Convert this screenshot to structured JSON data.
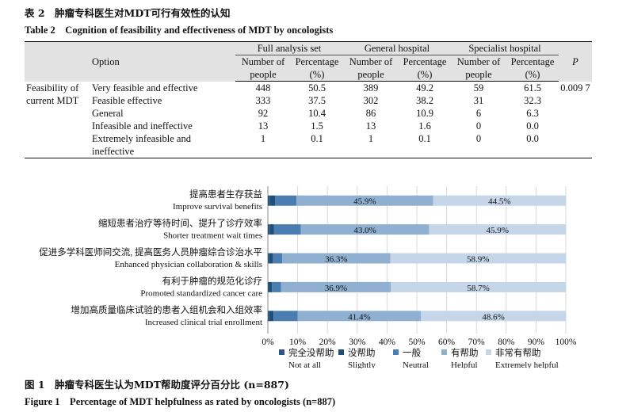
{
  "table": {
    "caption_cn": "表 2　肿瘤专科医生对MDT可行有效性的认知",
    "caption_en": "Table 2　Cognition of feasibility and effectiveness of MDT by oncologists",
    "header": {
      "option": "Option",
      "groups": [
        "Full analysis set",
        "General hospital",
        "Specialist hospital"
      ],
      "n_label": "Number of people",
      "pct_label": "Percentage (%)",
      "p_label": "P"
    },
    "row_group_label": "Feasibility of current MDT",
    "p_value": "0.009 7",
    "rows": [
      {
        "option": "Very feasible and effective",
        "fas_n": "448",
        "fas_pct": "50.5",
        "gh_n": "389",
        "gh_pct": "49.2",
        "sh_n": "59",
        "sh_pct": "61.5"
      },
      {
        "option": "Feasible effective",
        "fas_n": "333",
        "fas_pct": "37.5",
        "gh_n": "302",
        "gh_pct": "38.2",
        "sh_n": "31",
        "sh_pct": "32.3"
      },
      {
        "option": "General",
        "fas_n": "92",
        "fas_pct": "10.4",
        "gh_n": "86",
        "gh_pct": "10.9",
        "sh_n": "6",
        "sh_pct": "6.3"
      },
      {
        "option": "Infeasible and ineffective",
        "fas_n": "13",
        "fas_pct": "1.5",
        "gh_n": "13",
        "gh_pct": "1.6",
        "sh_n": "0",
        "sh_pct": "0.0"
      },
      {
        "option": "Extremely infeasible and ineffective",
        "fas_n": "1",
        "fas_pct": "0.1",
        "gh_n": "1",
        "gh_pct": "0.1",
        "sh_n": "0",
        "sh_pct": "0.0"
      }
    ]
  },
  "figure": {
    "caption_cn": "图 1　肿瘤专科医生认为MDT帮助度评分百分比 (n=887)",
    "caption_en": "Figure 1　Percentage of MDT helpfulness as rated by oncologists (n=887)"
  },
  "chart_data": {
    "type": "bar",
    "orientation": "horizontal",
    "stacked": true,
    "xlim": [
      0,
      100
    ],
    "x_ticks": [
      "0%",
      "10%",
      "20%",
      "30%",
      "40%",
      "50%",
      "60%",
      "70%",
      "80%",
      "90%",
      "100%"
    ],
    "grid": true,
    "legend_position": "bottom",
    "categories": [
      {
        "cn": "提高患者生存获益",
        "en": "Improve survival benefits"
      },
      {
        "cn": "缩短患者治疗等待时间、提升了诊疗效率",
        "en": "Shorter treatment wait times"
      },
      {
        "cn": "促进多学科医师间交流, 提高医务人员肿瘤综合诊治水平",
        "en": "Enhanced physician collaboration & skills"
      },
      {
        "cn": "有利于肿瘤的规范化诊疗",
        "en": "Promoted standardized cancer care"
      },
      {
        "cn": "增加高质量临床试验的患者入组机会和入组效率",
        "en": "Increased clinical trial enrollment"
      }
    ],
    "series": [
      {
        "name_cn": "完全没帮助",
        "name_en": "Not at all",
        "color": "#2a5783",
        "values": [
          0.6,
          0.6,
          0.5,
          0.4,
          0.5
        ]
      },
      {
        "name_cn": "没帮助",
        "name_en": "Slightly",
        "color": "#1f4e79",
        "values": [
          1.8,
          1.4,
          1.2,
          1.0,
          1.4
        ]
      },
      {
        "name_cn": "一般",
        "name_en": "Neutral",
        "color": "#4a7db0",
        "values": [
          7.2,
          9.1,
          3.1,
          3.0,
          8.1
        ]
      },
      {
        "name_cn": "有帮助",
        "name_en": "Helpful",
        "color": "#8fb0d0",
        "values": [
          45.9,
          43.0,
          36.3,
          36.9,
          41.4
        ],
        "labels": [
          "45.9%",
          "43.0%",
          "36.3%",
          "36.9%",
          "41.4%"
        ]
      },
      {
        "name_cn": "非常有帮助",
        "name_en": "Extremely helpful",
        "color": "#c4d6e8",
        "values": [
          44.5,
          45.9,
          58.9,
          58.7,
          48.6
        ],
        "labels": [
          "44.5%",
          "45.9%",
          "58.9%",
          "58.7%",
          "48.6%"
        ]
      }
    ]
  }
}
